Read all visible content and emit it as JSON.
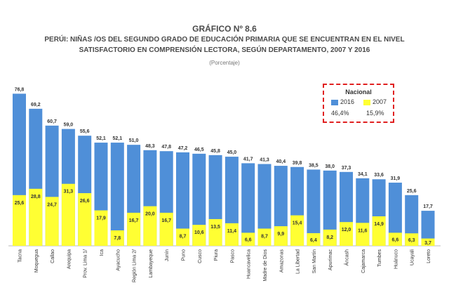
{
  "title": {
    "line1": "GRÁFICO Nº 8.6",
    "line2": "PERÚI:  NIÑAS /OS DEL SEGUNDO GRADO DE EDUCACIÓN PRIMARIA QUE SE ENCUENTRAN EN EL NIVEL",
    "line3": "SATISFACTORIO EN COMPRENSIÓN LECTORA, SEGÚN DEPARTAMENTO, 2007 Y 2016",
    "line4": "(Porcentaje)"
  },
  "legend": {
    "title": "Nacional",
    "item_2016": "2016",
    "item_2007": "2007",
    "value_2016": "46,4%",
    "value_2007": "15,9%"
  },
  "colors": {
    "bar_2016": "#4f8fd8",
    "bar_2007": "#ffff33",
    "legend_border": "#e02020"
  },
  "chart_data": {
    "type": "bar",
    "categories": [
      "Tacna",
      "Moquegua",
      "Callao",
      "Arequipa",
      "Prov. Lima 1/",
      "Ica",
      "Ayacucho",
      "Región Lima 2/",
      "Lambayeque",
      "Junín",
      "Puno",
      "Cusco",
      "Piura",
      "Pasco",
      "Huancavelica",
      "Madre de Dios",
      "Amazonas",
      "La Libertad",
      "San Martín",
      "Apurímac",
      "Áncash",
      "Cajamarca",
      "Tumbes",
      "Huánuco",
      "Ucayali",
      "Loreto"
    ],
    "series": [
      {
        "name": "2016",
        "values": [
          76.8,
          69.2,
          60.7,
          59.0,
          55.6,
          52.1,
          52.1,
          51.0,
          48.3,
          47.8,
          47.2,
          46.5,
          45.8,
          45.0,
          41.7,
          41.3,
          40.4,
          39.8,
          38.5,
          38.0,
          37.3,
          34.1,
          33.6,
          31.9,
          25.6,
          17.7
        ]
      },
      {
        "name": "2007",
        "values": [
          25.6,
          28.8,
          24.7,
          31.3,
          26.6,
          17.9,
          7.8,
          16.7,
          20.0,
          16.7,
          8.7,
          10.6,
          13.5,
          11.4,
          6.6,
          8.7,
          9.9,
          15.4,
          6.4,
          8.2,
          12.0,
          11.6,
          14.9,
          6.6,
          6.3,
          3.7
        ]
      }
    ],
    "value_labels_2016": [
      "76,8",
      "69,2",
      "60,7",
      "59,0",
      "55,6",
      "52,1",
      "52,1",
      "51,0",
      "48,3",
      "47,8",
      "47,2",
      "46,5",
      "45,8",
      "45,0",
      "41,7",
      "41,3",
      "40,4",
      "39,8",
      "38,5",
      "38,0",
      "37,3",
      "34,1",
      "33,6",
      "31,9",
      "25,6",
      "17,7"
    ],
    "value_labels_2007": [
      "25,6",
      "28,8",
      "24,7",
      "31,3",
      "26,6",
      "17,9",
      "7,8",
      "16,7",
      "20,0",
      "16,7",
      "8,7",
      "10,6",
      "13,5",
      "11,4",
      "6,6",
      "8,7",
      "9,9",
      "15,4",
      "6,4",
      "8,2",
      "12,0",
      "11,6",
      "14,9",
      "6,6",
      "6,3",
      "3,7"
    ],
    "ylim": [
      0,
      80
    ],
    "grid": false,
    "legend_position": "top-right"
  }
}
